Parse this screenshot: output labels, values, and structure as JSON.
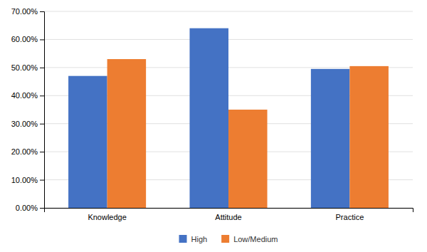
{
  "chart_data": {
    "type": "bar",
    "categories": [
      "Knowledge",
      "Attitude",
      "Practice"
    ],
    "series": [
      {
        "name": "High",
        "color": "#4472C4",
        "values": [
          0.47,
          0.64,
          0.495
        ]
      },
      {
        "name": "Low/Medium",
        "color": "#ED7D31",
        "values": [
          0.53,
          0.35,
          0.505
        ]
      }
    ],
    "ylim": [
      0.0,
      0.7
    ],
    "yticks": [
      {
        "value": 0.0,
        "label": "0.00%"
      },
      {
        "value": 0.1,
        "label": "10.00%"
      },
      {
        "value": 0.2,
        "label": "20.00%"
      },
      {
        "value": 0.3,
        "label": "30.00%"
      },
      {
        "value": 0.4,
        "label": "40.00%"
      },
      {
        "value": 0.5,
        "label": "50.00%"
      },
      {
        "value": 0.6,
        "label": "60.00%"
      },
      {
        "value": 0.7,
        "label": "70.00%"
      }
    ],
    "grid": true,
    "legend": "bottom"
  }
}
